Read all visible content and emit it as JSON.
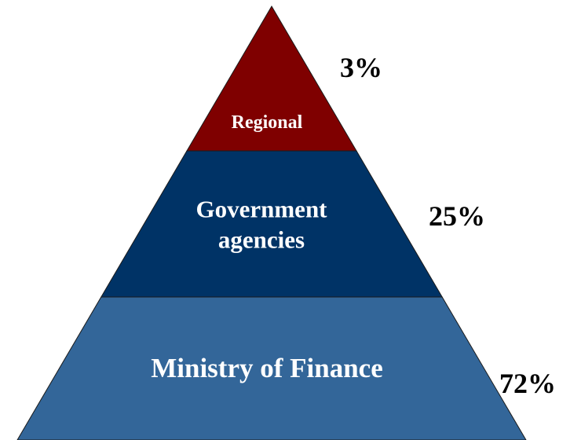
{
  "chart_data": {
    "type": "pyramid",
    "categories": [
      "Regional",
      "Government agencies",
      "Ministry of Finance"
    ],
    "values": [
      3,
      25,
      72
    ],
    "value_labels": [
      "3%",
      "25%",
      "72%"
    ],
    "colors": [
      "#7f0000",
      "#003366",
      "#336699"
    ]
  }
}
